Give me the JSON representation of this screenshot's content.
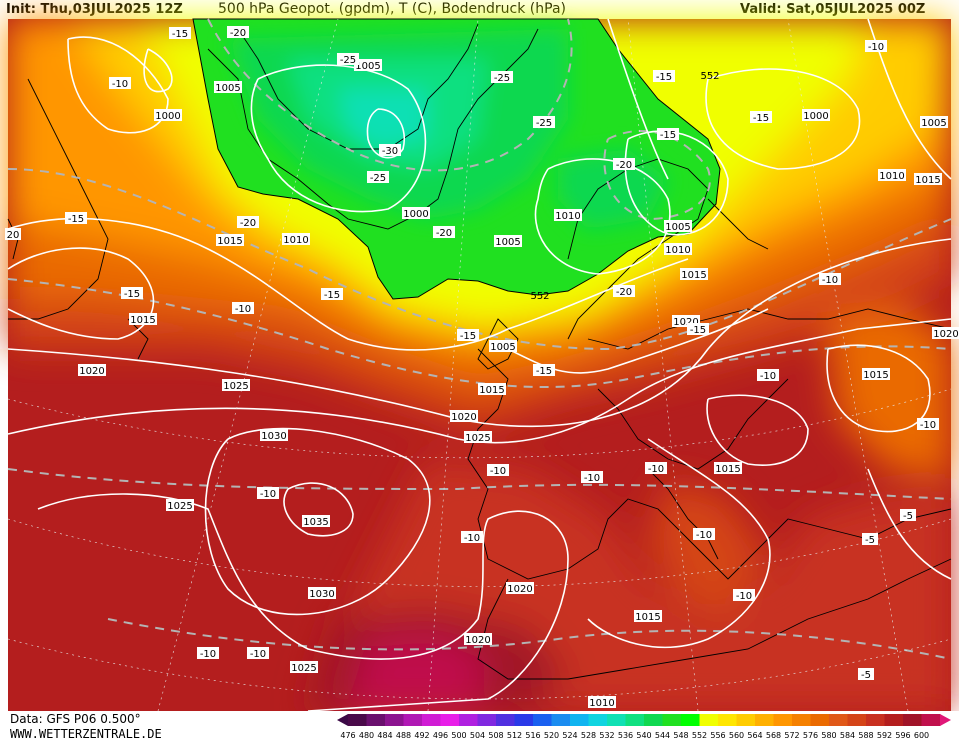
{
  "header": {
    "init": "Init: Thu,03JUL2025 12Z",
    "title": "500 hPa Geopot. (gpdm), T (C), Bodendruck (hPa)",
    "valid": "Valid: Sat,05JUL2025 00Z"
  },
  "footer": {
    "data_source": "Data: GFS P06 0.500°",
    "website": "WWW.WETTERZENTRALE.DE"
  },
  "color_scale": {
    "ticks": [
      "476",
      "480",
      "484",
      "488",
      "492",
      "496",
      "500",
      "504",
      "508",
      "512",
      "516",
      "520",
      "524",
      "528",
      "532",
      "536",
      "540",
      "544",
      "548",
      "552",
      "556",
      "560",
      "564",
      "568",
      "572",
      "576",
      "580",
      "584",
      "588",
      "592",
      "596",
      "600"
    ],
    "colors": [
      "#4a0a4a",
      "#6a106e",
      "#8c1490",
      "#b018b4",
      "#d01cd4",
      "#e81ee8",
      "#b020e0",
      "#8028e0",
      "#5030e0",
      "#2a3ae8",
      "#1a60f0",
      "#1a8cf0",
      "#10b4f0",
      "#10d4e0",
      "#10e0b4",
      "#10e080",
      "#10d850",
      "#20e020",
      "#00ff00",
      "#f0ff00",
      "#ffe600",
      "#ffcc00",
      "#ffb000",
      "#ff9600",
      "#f58000",
      "#ea6a00",
      "#e05818",
      "#d44418",
      "#c83020",
      "#b41e1e",
      "#a01428",
      "#c0104c"
    ]
  },
  "pressure_labels": [
    {
      "text": "1005"
    },
    {
      "text": "1005"
    },
    {
      "text": "1000"
    },
    {
      "text": "1000"
    },
    {
      "text": "1000"
    },
    {
      "text": "1005"
    },
    {
      "text": "1005"
    },
    {
      "text": "1010"
    },
    {
      "text": "1015"
    },
    {
      "text": "1015"
    },
    {
      "text": "1020"
    },
    {
      "text": "1025"
    },
    {
      "text": "1030"
    },
    {
      "text": "1035"
    },
    {
      "text": "1025"
    },
    {
      "text": "1030"
    },
    {
      "text": "1025"
    },
    {
      "text": "1020"
    },
    {
      "text": "1020"
    },
    {
      "text": "1020"
    },
    {
      "text": "1015"
    },
    {
      "text": "1015"
    },
    {
      "text": "1015"
    },
    {
      "text": "1010"
    },
    {
      "text": "1010"
    },
    {
      "text": "1005"
    },
    {
      "text": "1010"
    },
    {
      "text": "1015"
    },
    {
      "text": "1020"
    },
    {
      "text": "1025"
    },
    {
      "text": "1015"
    },
    {
      "text": "1010"
    },
    {
      "text": "1020"
    },
    {
      "text": "1015"
    },
    {
      "text": "1005"
    }
  ],
  "temp_labels": [
    {
      "text": "-15"
    },
    {
      "text": "-20"
    },
    {
      "text": "-10"
    },
    {
      "text": "-25"
    },
    {
      "text": "-30"
    },
    {
      "text": "-25"
    },
    {
      "text": "-25"
    },
    {
      "text": "-25"
    },
    {
      "text": "-20"
    },
    {
      "text": "-20"
    },
    {
      "text": "-15"
    },
    {
      "text": "-15"
    },
    {
      "text": "-15"
    },
    {
      "text": "-15"
    },
    {
      "text": "-20"
    },
    {
      "text": "-15"
    },
    {
      "text": "-10"
    },
    {
      "text": "-15"
    },
    {
      "text": "-15"
    },
    {
      "text": "-15"
    },
    {
      "text": "-20"
    },
    {
      "text": "-10"
    },
    {
      "text": "-10"
    },
    {
      "text": "-10"
    },
    {
      "text": "-10"
    },
    {
      "text": "-10"
    },
    {
      "text": "-10"
    },
    {
      "text": "-10"
    },
    {
      "text": "-10"
    },
    {
      "text": "-10"
    },
    {
      "text": "-10"
    },
    {
      "text": "-10"
    },
    {
      "text": "-10"
    },
    {
      "text": "-5"
    },
    {
      "text": "-5"
    },
    {
      "text": "-5"
    },
    {
      "text": "-10"
    },
    {
      "text": "20"
    },
    {
      "text": "-15"
    }
  ],
  "geopot_labels": [
    {
      "text": "552"
    },
    {
      "text": "552"
    }
  ]
}
